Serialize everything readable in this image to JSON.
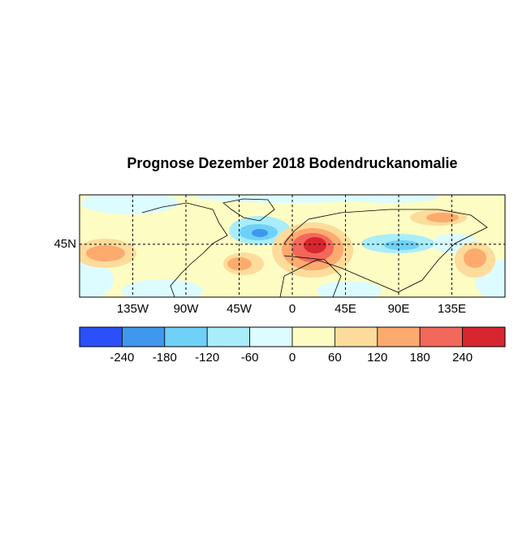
{
  "map": {
    "title": "Prognose Dezember 2018 Bodendruckanomalie",
    "lonlim": [
      -180,
      180
    ],
    "latlim": [
      0,
      87
    ],
    "lon_ticks": [
      {
        "value": -135,
        "label": "135W"
      },
      {
        "value": -90,
        "label": "90W"
      },
      {
        "value": -45,
        "label": "45W"
      },
      0,
      {
        "value": 45,
        "label": "45E"
      },
      {
        "value": 90,
        "label": "90E"
      },
      {
        "value": 135,
        "label": "135E"
      }
    ],
    "lat_ticks": [
      {
        "value": 45,
        "label": "45N"
      }
    ],
    "grid": true,
    "colorbar": {
      "levels": [
        -240,
        -180,
        -120,
        -60,
        0,
        60,
        120,
        180,
        240
      ],
      "colors": [
        "#2b4ffa",
        "#3f97ee",
        "#6fd1f8",
        "#a9edfb",
        "#dcfcff",
        "#fdfcc3",
        "#fddc9b",
        "#fdaa6f",
        "#f2685b",
        "#d7262f"
      ]
    }
  }
}
